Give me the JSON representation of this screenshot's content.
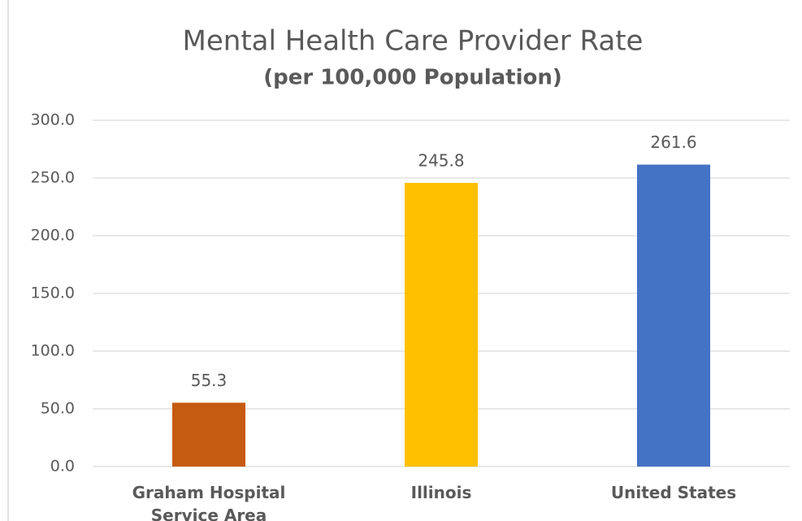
{
  "chart_data": {
    "type": "bar",
    "title": "Mental Health Care Provider Rate",
    "subtitle": "(per 100,000 Population)",
    "categories": [
      "Graham Hospital Service Area",
      "Illinois",
      "United States"
    ],
    "values": [
      55.3,
      245.8,
      261.6
    ],
    "colors": [
      "#c55a11",
      "#ffc000",
      "#4472c4"
    ],
    "ylim": [
      0,
      300
    ],
    "yticks": [
      {
        "value": 0,
        "label": "0.0"
      },
      {
        "value": 50,
        "label": "50.0"
      },
      {
        "value": 100,
        "label": "100.0"
      },
      {
        "value": 150,
        "label": "150.0"
      },
      {
        "value": 200,
        "label": "200.0"
      },
      {
        "value": 250,
        "label": "250.0"
      },
      {
        "value": 300,
        "label": "300.0"
      }
    ],
    "grid": true
  }
}
